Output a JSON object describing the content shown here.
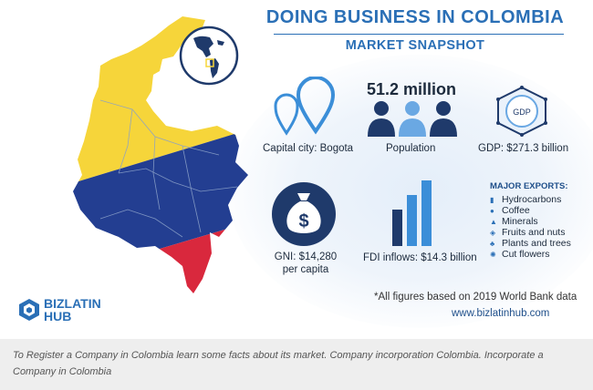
{
  "header": {
    "title": "DOING BUSINESS IN COLOMBIA",
    "subtitle": "MARKET SNAPSHOT"
  },
  "stats": {
    "capital": "Capital city: Bogota",
    "population_value": "51.2 million",
    "population_label": "Population",
    "gdp_badge": "GDP",
    "gdp": "GDP: $271.3 billion",
    "gni_line1": "GNI: $14,280",
    "gni_line2": "per capita",
    "fdi": "FDI inflows: $14.3 billion"
  },
  "exports": {
    "heading": "MAJOR EXPORTS:",
    "items": [
      {
        "label": "Hydrocarbons",
        "icon": "oil-icon"
      },
      {
        "label": "Coffee",
        "icon": "coffee-icon"
      },
      {
        "label": "Minerals",
        "icon": "minerals-icon"
      },
      {
        "label": "Fruits and nuts",
        "icon": "fruit-icon"
      },
      {
        "label": "Plants and trees",
        "icon": "plant-icon"
      },
      {
        "label": "Cut flowers",
        "icon": "flower-icon"
      }
    ]
  },
  "footer": {
    "note": "*All figures based on 2019 World Bank data",
    "url": "www.bizlatinhub.com",
    "logo_line1": "BIZLATIN",
    "logo_line2": "HUB"
  },
  "caption": "To Register a Company in Colombia learn some facts about its market. Company incorporation Colombia. Incorporate a Company in Colombia",
  "colors": {
    "brand_blue": "#2a6fb6",
    "navy": "#1f3a6b",
    "flag_yellow": "#f6d53a",
    "flag_blue": "#233e91",
    "flag_red": "#d9283d"
  }
}
